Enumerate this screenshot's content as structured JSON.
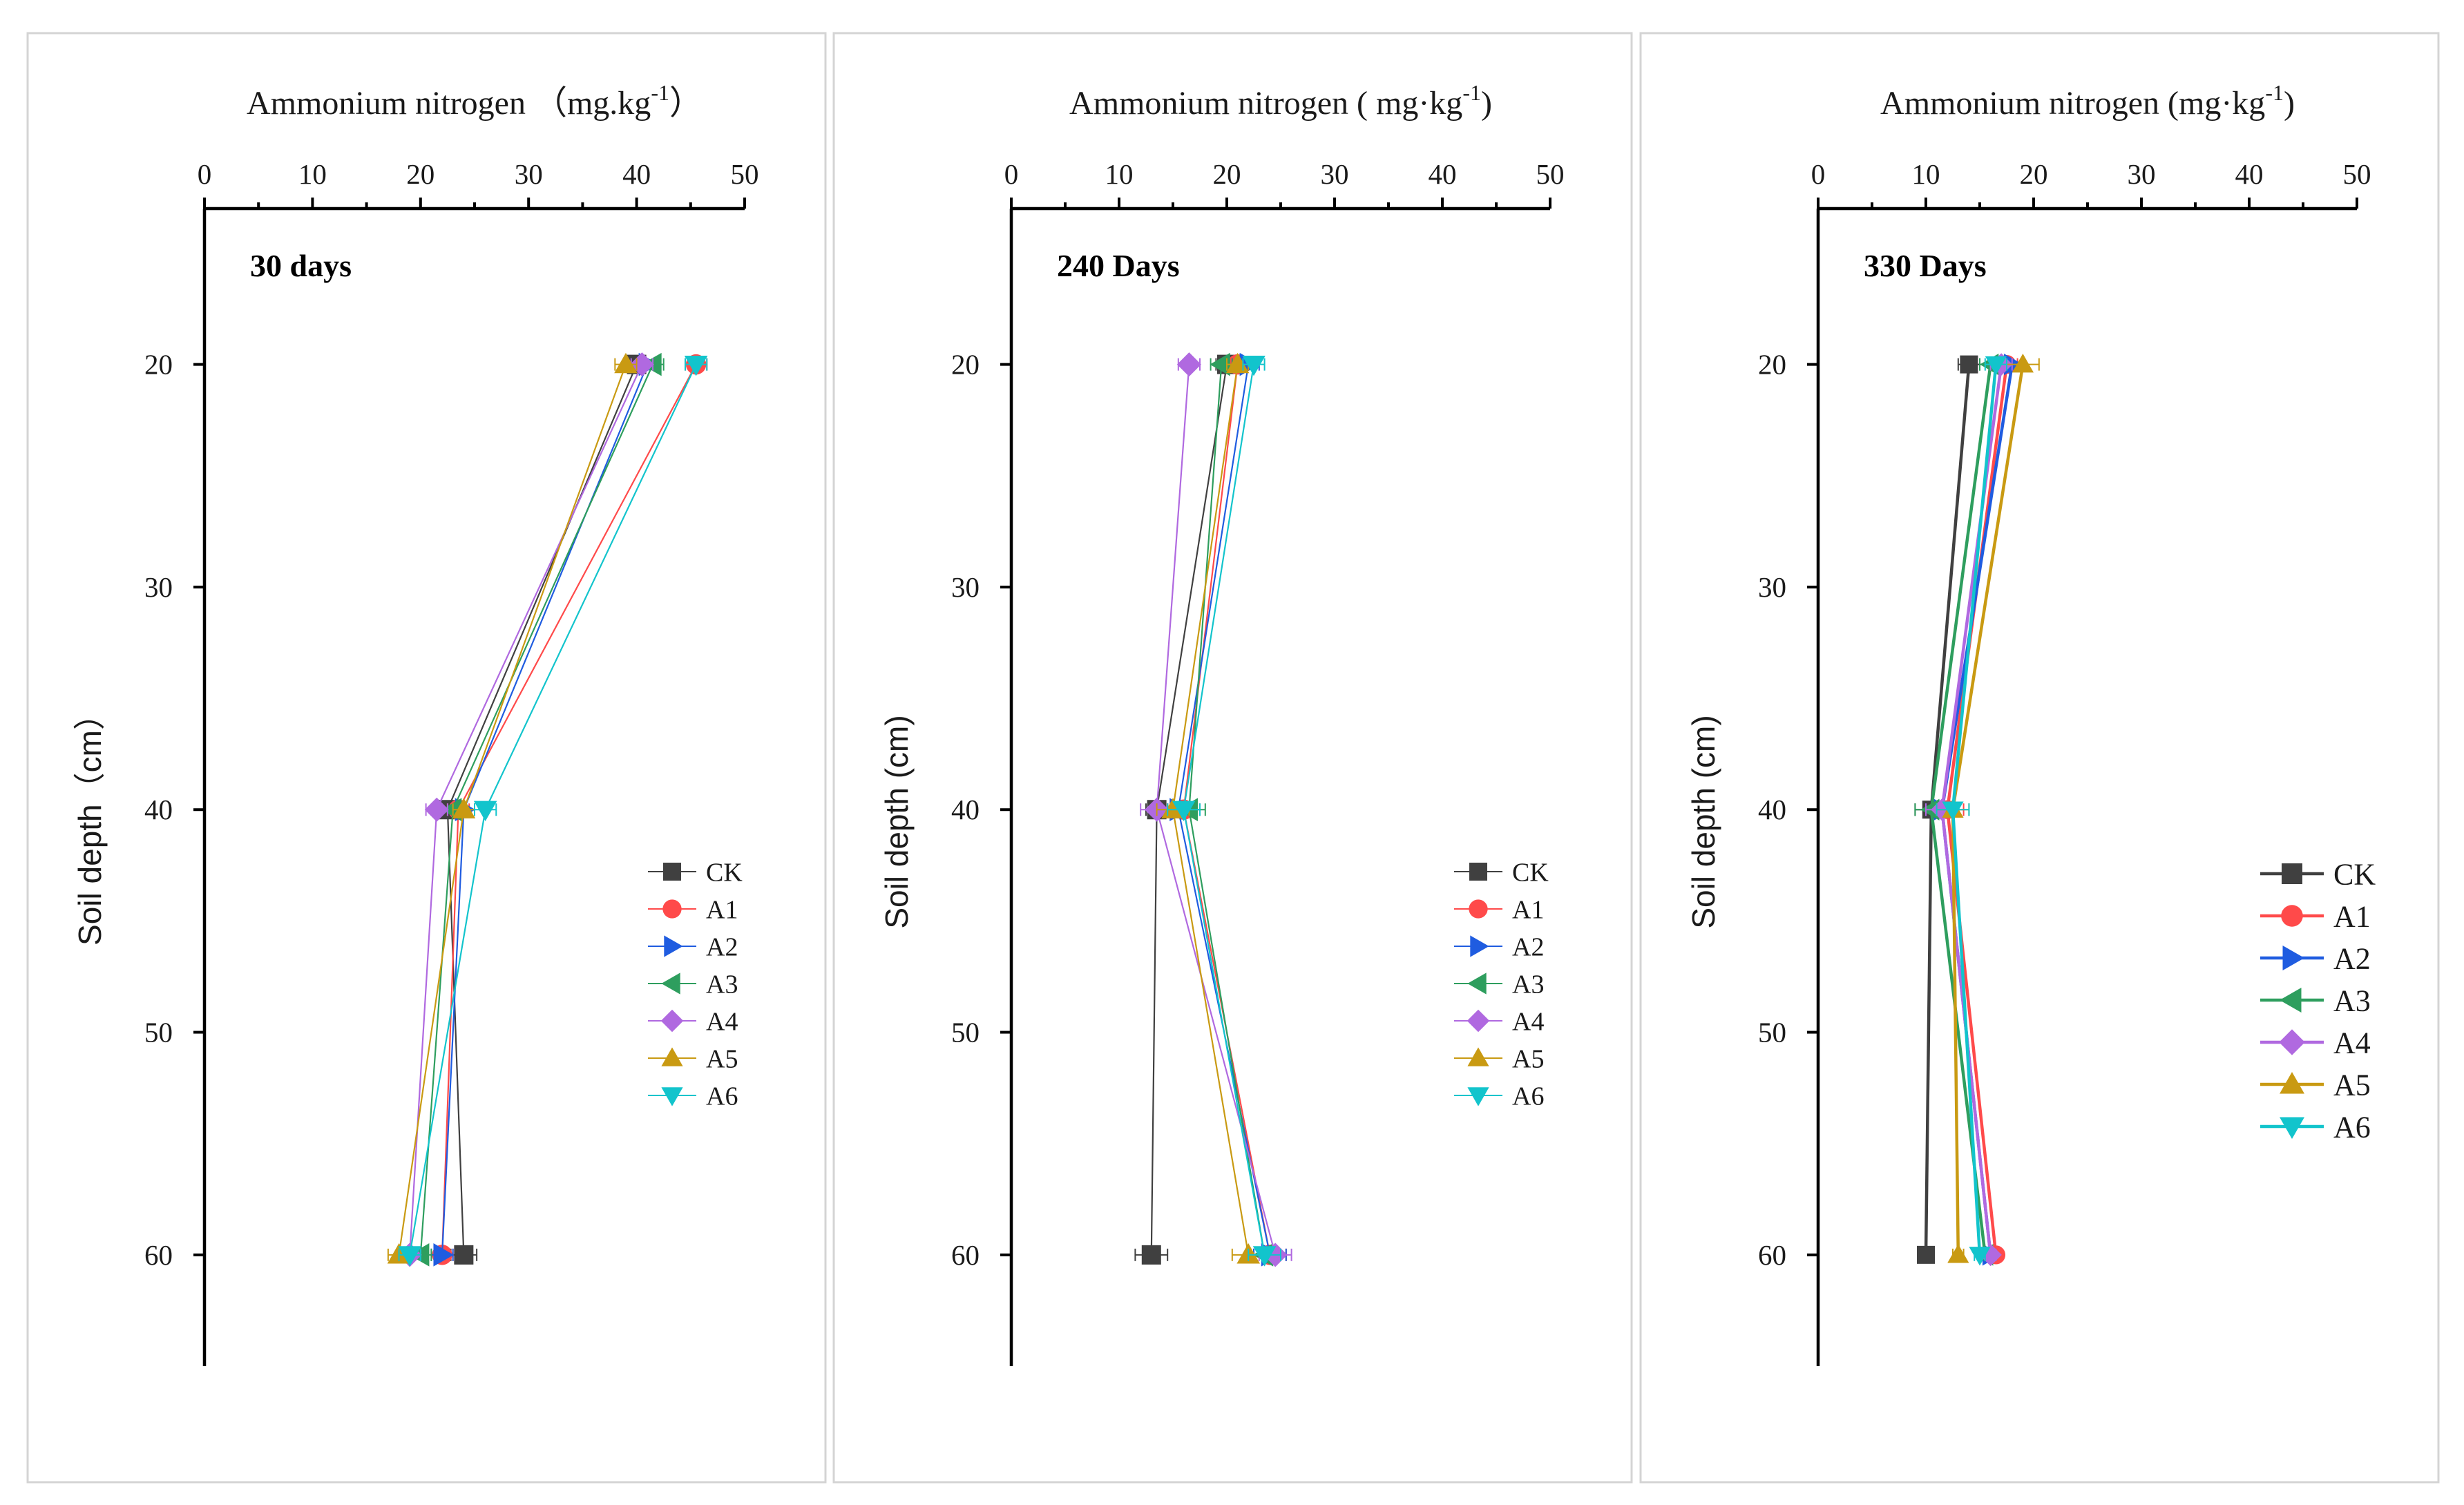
{
  "figure": {
    "x_axis_title": "Ammonium nitrogen",
    "y_axis_title": "Soil depth",
    "colors": {
      "CK": "#404040",
      "A1": "#ff4a4a",
      "A2": "#1f5ce0",
      "A3": "#2e9e5e",
      "A4": "#b069e0",
      "A5": "#c99a12",
      "A6": "#12c4cc"
    },
    "markers": {
      "CK": "square",
      "A1": "circle",
      "A2": "triangle-right",
      "A3": "triangle-left",
      "A4": "diamond",
      "A5": "triangle-up",
      "A6": "triangle-down"
    }
  },
  "chart_data": [
    {
      "type": "line",
      "orientation": "depth-profile",
      "title": "30 days",
      "xlabel": "Ammonium nitrogen （mg.kg-1）",
      "xlabel_main": "Ammonium nitrogen （mg.kg",
      "xlabel_sup": "-1",
      "xlabel_close": "）",
      "ylabel": "Soil depth（cm）",
      "xlim": [
        0,
        50
      ],
      "ylim": [
        65,
        13
      ],
      "xticks": [
        "0",
        "10",
        "20",
        "30",
        "40",
        "50"
      ],
      "yticks": [
        "20",
        "30",
        "40",
        "50",
        "60"
      ],
      "depths": [
        20,
        40,
        60
      ],
      "legend_style": "thin",
      "series": [
        {
          "name": "CK",
          "values": [
            40.0,
            22.5,
            24.0
          ],
          "errors": [
            1.0,
            1.0,
            1.2
          ]
        },
        {
          "name": "A1",
          "values": [
            45.5,
            23.5,
            22.0
          ],
          "errors": [
            1.0,
            1.0,
            1.0
          ]
        },
        {
          "name": "A2",
          "values": [
            41.0,
            24.0,
            22.0
          ],
          "errors": [
            1.0,
            1.0,
            1.0
          ]
        },
        {
          "name": "A3",
          "values": [
            41.5,
            23.0,
            20.0
          ],
          "errors": [
            1.0,
            1.0,
            1.0
          ]
        },
        {
          "name": "A4",
          "values": [
            40.5,
            21.5,
            19.0
          ],
          "errors": [
            1.0,
            1.0,
            1.0
          ]
        },
        {
          "name": "A5",
          "values": [
            39.0,
            24.0,
            18.0
          ],
          "errors": [
            1.0,
            1.0,
            1.0
          ]
        },
        {
          "name": "A6",
          "values": [
            45.5,
            26.0,
            19.0
          ],
          "errors": [
            1.0,
            1.0,
            1.0
          ]
        }
      ]
    },
    {
      "type": "line",
      "orientation": "depth-profile",
      "title": "240 Days",
      "xlabel": "Ammonium nitrogen ( mg·kg-1)",
      "xlabel_main": "Ammonium nitrogen ( mg·kg",
      "xlabel_sup": "-1",
      "xlabel_close": ")",
      "ylabel": "Soil depth (cm)",
      "xlim": [
        0,
        50
      ],
      "ylim": [
        65,
        13
      ],
      "xticks": [
        "0",
        "10",
        "20",
        "30",
        "40",
        "50"
      ],
      "yticks": [
        "20",
        "30",
        "40",
        "50",
        "60"
      ],
      "depths": [
        20,
        40,
        60
      ],
      "legend_style": "thin",
      "series": [
        {
          "name": "CK",
          "values": [
            20.0,
            13.5,
            13.0
          ],
          "errors": [
            1.0,
            1.0,
            1.5
          ]
        },
        {
          "name": "A1",
          "values": [
            21.0,
            16.0,
            24.0
          ],
          "errors": [
            1.0,
            1.5,
            1.5
          ]
        },
        {
          "name": "A2",
          "values": [
            22.0,
            15.5,
            24.0
          ],
          "errors": [
            1.0,
            1.5,
            1.5
          ]
        },
        {
          "name": "A3",
          "values": [
            19.5,
            16.5,
            23.5
          ],
          "errors": [
            1.0,
            1.5,
            1.5
          ]
        },
        {
          "name": "A4",
          "values": [
            16.5,
            13.5,
            24.5
          ],
          "errors": [
            1.0,
            1.5,
            1.5
          ]
        },
        {
          "name": "A5",
          "values": [
            21.0,
            15.0,
            22.0
          ],
          "errors": [
            1.0,
            1.5,
            1.5
          ]
        },
        {
          "name": "A6",
          "values": [
            22.5,
            16.0,
            23.5
          ],
          "errors": [
            1.0,
            1.5,
            1.5
          ]
        }
      ]
    },
    {
      "type": "line",
      "orientation": "depth-profile",
      "title": "330 Days",
      "xlabel": "Ammonium nitrogen (mg·kg-1)",
      "xlabel_main": "Ammonium nitrogen (mg·kg",
      "xlabel_sup": "-1",
      "xlabel_close": ")",
      "ylabel": "Soil depth (cm)",
      "xlim": [
        0,
        50
      ],
      "ylim": [
        65,
        13
      ],
      "xticks": [
        "0",
        "10",
        "20",
        "30",
        "40",
        "50"
      ],
      "yticks": [
        "20",
        "30",
        "40",
        "50",
        "60"
      ],
      "depths": [
        20,
        40,
        60
      ],
      "legend_style": "bold",
      "series": [
        {
          "name": "CK",
          "values": [
            14.0,
            10.5,
            10.0
          ],
          "errors": [
            1.0,
            1.5,
            0.5
          ]
        },
        {
          "name": "A1",
          "values": [
            17.5,
            12.0,
            16.5
          ],
          "errors": [
            1.0,
            1.5,
            0.5
          ]
        },
        {
          "name": "A2",
          "values": [
            18.0,
            11.5,
            16.0
          ],
          "errors": [
            1.0,
            1.5,
            0.5
          ]
        },
        {
          "name": "A3",
          "values": [
            16.0,
            10.5,
            15.5
          ],
          "errors": [
            1.0,
            1.5,
            0.5
          ]
        },
        {
          "name": "A4",
          "values": [
            17.0,
            11.5,
            16.0
          ],
          "errors": [
            1.0,
            1.5,
            0.5
          ]
        },
        {
          "name": "A5",
          "values": [
            19.0,
            12.5,
            13.0
          ],
          "errors": [
            1.5,
            1.5,
            0.5
          ]
        },
        {
          "name": "A6",
          "values": [
            16.5,
            12.5,
            15.0
          ],
          "errors": [
            1.0,
            1.5,
            0.5
          ]
        }
      ]
    }
  ]
}
